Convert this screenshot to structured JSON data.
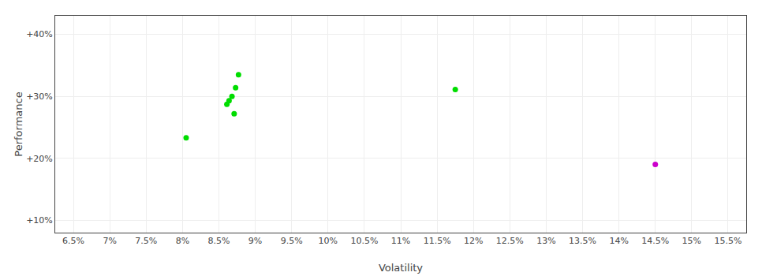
{
  "chart_data": {
    "type": "scatter",
    "xlabel": "Volatility",
    "ylabel": "Performance",
    "series": [
      {
        "color": "#00dd00",
        "x": [
          8.77,
          8.73,
          8.68,
          8.64,
          8.61,
          8.71,
          8.05,
          11.75
        ],
        "values": [
          33.5,
          31.4,
          30.0,
          29.3,
          28.7,
          27.2,
          23.3,
          31.1
        ]
      },
      {
        "color": "#cc00cc",
        "x": [
          14.5
        ],
        "values": [
          19.0
        ]
      }
    ],
    "xlim": [
      6.25,
      15.75
    ],
    "xticks": [
      {
        "value": 6.5,
        "label": "6.5%"
      },
      {
        "value": 7.0,
        "label": "7%"
      },
      {
        "value": 7.5,
        "label": "7.5%"
      },
      {
        "value": 8.0,
        "label": "8%"
      },
      {
        "value": 8.5,
        "label": "8.5%"
      },
      {
        "value": 9.0,
        "label": "9%"
      },
      {
        "value": 9.5,
        "label": "9.5%"
      },
      {
        "value": 10.0,
        "label": "10%"
      },
      {
        "value": 10.5,
        "label": "10.5%"
      },
      {
        "value": 11.0,
        "label": "11%"
      },
      {
        "value": 11.5,
        "label": "11.5%"
      },
      {
        "value": 12.0,
        "label": "12%"
      },
      {
        "value": 12.5,
        "label": "12.5%"
      },
      {
        "value": 13.0,
        "label": "13%"
      },
      {
        "value": 13.5,
        "label": "13.5%"
      },
      {
        "value": 14.0,
        "label": "14%"
      },
      {
        "value": 14.5,
        "label": "14.5%"
      },
      {
        "value": 15.0,
        "label": "15%"
      },
      {
        "value": 15.5,
        "label": "15.5%"
      }
    ],
    "ylim": [
      8.0,
      43.0
    ],
    "yticks": [
      {
        "value": 10,
        "label": "+10%"
      },
      {
        "value": 20,
        "label": "+20%"
      },
      {
        "value": 30,
        "label": "+30%"
      },
      {
        "value": 40,
        "label": "+40%"
      }
    ],
    "grid": true
  }
}
